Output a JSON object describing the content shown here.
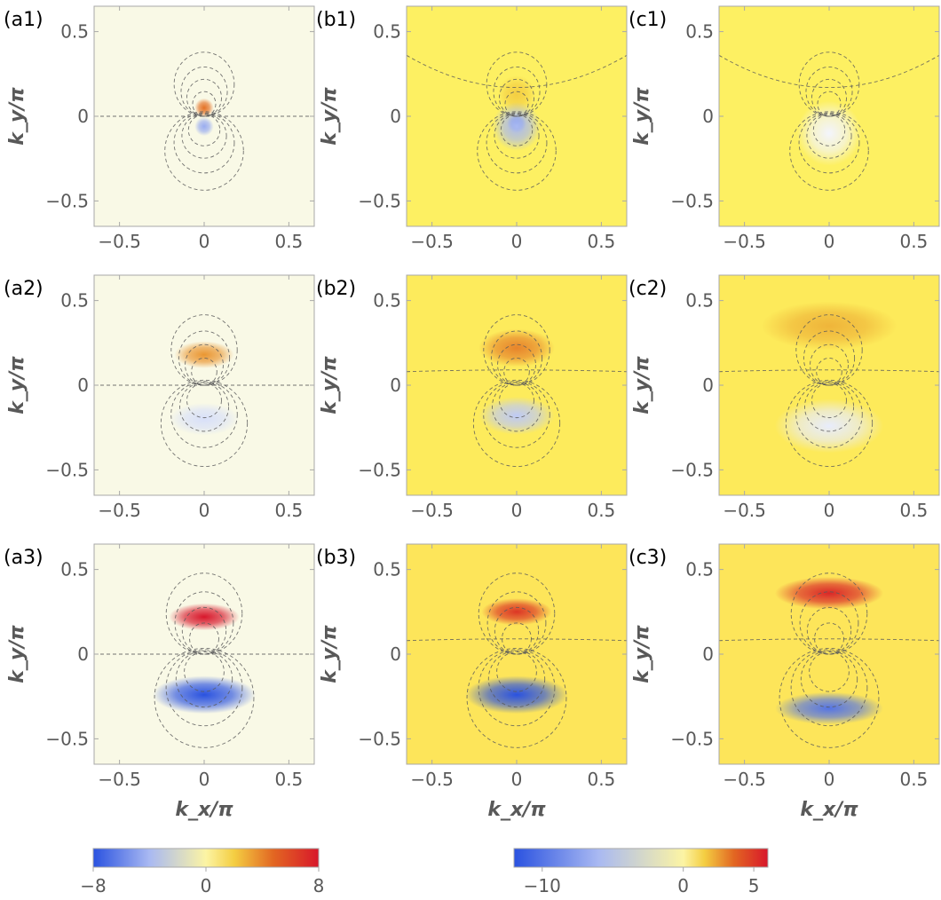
{
  "chart_data": {
    "type": "heatmap",
    "xlabel": "k_x/π",
    "ylabel": "k_y/π",
    "axis_range": [
      -0.65,
      0.65
    ],
    "ticks": [
      -0.5,
      0,
      0.5
    ],
    "tick_labels": [
      "−0.5",
      "0",
      "0.5"
    ],
    "panels": [
      {
        "label": "(a1)",
        "row": 1,
        "col": "a",
        "background": "#f9f9e6",
        "scale": 0.2,
        "blobs": [
          {
            "x": 0,
            "y": 0.05,
            "value": 4.5,
            "r": 0.035
          },
          {
            "x": 0,
            "y": -0.06,
            "value": -4.5,
            "r": 0.035
          }
        ]
      },
      {
        "label": "(b1)",
        "row": 1,
        "col": "b",
        "background": "#fdf062",
        "scale": 0.2,
        "blobs": [
          {
            "x": 0,
            "y": 0.13,
            "value": 1.5,
            "r": 0.07
          },
          {
            "x": 0,
            "y": -0.04,
            "value": -11,
            "r": 0.035
          },
          {
            "x": 0,
            "y": -0.06,
            "value": -6,
            "r": 0.09
          }
        ]
      },
      {
        "label": "(c1)",
        "row": 1,
        "col": "c",
        "background": "#fdf062",
        "scale": 0.2,
        "blobs": [
          {
            "x": 0,
            "y": -0.1,
            "value": -2.5,
            "r": 0.12
          }
        ]
      },
      {
        "label": "(a2)",
        "row": 2,
        "col": "a",
        "background": "#f9f9e6",
        "scale": 0.5,
        "blobs": [
          {
            "x": 0,
            "y": 0.18,
            "value": 3.5,
            "rx": 0.11,
            "ry": 0.05
          },
          {
            "x": 0,
            "y": -0.2,
            "value": -2.5,
            "rx": 0.13,
            "ry": 0.06
          }
        ]
      },
      {
        "label": "(b2)",
        "row": 2,
        "col": "b",
        "background": "#fdeb5c",
        "scale": 0.5,
        "blobs": [
          {
            "x": 0,
            "y": 0.22,
            "value": 3,
            "rx": 0.14,
            "ry": 0.07
          },
          {
            "x": 0,
            "y": -0.18,
            "value": -5,
            "rx": 0.14,
            "ry": 0.07
          }
        ]
      },
      {
        "label": "(c2)",
        "row": 2,
        "col": "c",
        "background": "#fdea5a",
        "scale": 0.5,
        "blobs": [
          {
            "x": 0,
            "y": 0.35,
            "value": 2,
            "rx": 0.25,
            "ry": 0.09
          },
          {
            "x": 0,
            "y": -0.24,
            "value": -3,
            "rx": 0.2,
            "ry": 0.1
          }
        ]
      },
      {
        "label": "(a3)",
        "row": 3,
        "col": "a",
        "background": "#f9f9e6",
        "scale": 1,
        "blobs": [
          {
            "x": 0,
            "y": 0.22,
            "value": 8,
            "rx": 0.13,
            "ry": 0.05
          },
          {
            "x": 0,
            "y": -0.24,
            "value": -8,
            "rx": 0.19,
            "ry": 0.07
          }
        ]
      },
      {
        "label": "(b3)",
        "row": 3,
        "col": "b",
        "background": "#fde55a",
        "scale": 1,
        "blobs": [
          {
            "x": 0,
            "y": 0.25,
            "value": 5,
            "rx": 0.13,
            "ry": 0.05
          },
          {
            "x": 0,
            "y": -0.24,
            "value": -12,
            "rx": 0.19,
            "ry": 0.07
          }
        ]
      },
      {
        "label": "(c3)",
        "row": 3,
        "col": "c",
        "background": "#fde55a",
        "scale": 1,
        "blobs": [
          {
            "x": 0,
            "y": 0.36,
            "value": 5.5,
            "rx": 0.2,
            "ry": 0.06
          },
          {
            "x": 0,
            "y": -0.32,
            "value": -10,
            "rx": 0.2,
            "ry": 0.06
          }
        ]
      }
    ],
    "colorbars": [
      {
        "name": "colorbar-a",
        "min": -8,
        "max": 8,
        "tick_values": [
          -8,
          0,
          8
        ],
        "tick_labels": [
          "−8",
          "0",
          "8"
        ],
        "colors": [
          "#2a52e0",
          "#ffffff",
          "#f8e94a",
          "#e05a1e",
          "#d8172b"
        ]
      },
      {
        "name": "colorbar-bc",
        "min": -12,
        "max": 6,
        "tick_values": [
          -10,
          0,
          5
        ],
        "tick_labels": [
          "−10",
          "0",
          "5"
        ],
        "colors": [
          "#2a52e0",
          "#ffffff",
          "#f8e94a",
          "#e05a1e",
          "#d8172b"
        ]
      }
    ]
  }
}
